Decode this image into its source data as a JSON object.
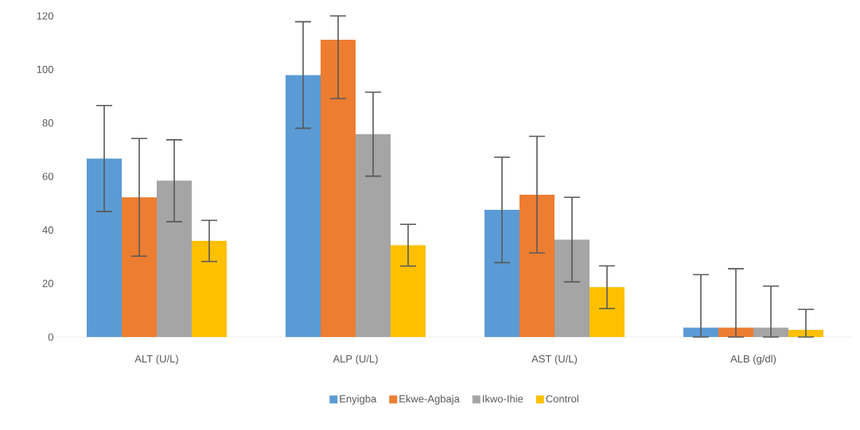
{
  "chart_data": {
    "type": "bar",
    "categories": [
      "ALT (U/L)",
      "ALP (U/L)",
      "AST (U/L)",
      "ALB (g/dl)"
    ],
    "series": [
      {
        "name": "Enyigba",
        "color": "#5b9bd5",
        "values": [
          66.7,
          97.9,
          47.5,
          3.5
        ],
        "errors": [
          19.8,
          19.9,
          19.7,
          [
            0,
            23.3
          ]
        ]
      },
      {
        "name": "Ekwe-Agbaja",
        "color": "#ed7d31",
        "values": [
          52.2,
          111.1,
          53.2,
          3.5
        ],
        "errors": [
          22,
          [
            89.1,
            120
          ],
          21.8,
          [
            0,
            25.5
          ]
        ]
      },
      {
        "name": "Ikwo-Ihie",
        "color": "#a5a5a5",
        "values": [
          58.4,
          75.8,
          36.4,
          3.5
        ],
        "errors": [
          15.3,
          15.7,
          15.8,
          [
            0,
            19
          ]
        ]
      },
      {
        "name": "Control",
        "color": "#ffc000",
        "values": [
          35.9,
          34.3,
          18.6,
          2.7
        ],
        "errors": [
          7.7,
          7.8,
          8,
          [
            0,
            10.3
          ]
        ]
      }
    ],
    "ylim": [
      0,
      120
    ],
    "yticks": [
      0,
      20,
      40,
      60,
      80,
      100,
      120
    ],
    "grid": false,
    "legend": "bottom"
  }
}
